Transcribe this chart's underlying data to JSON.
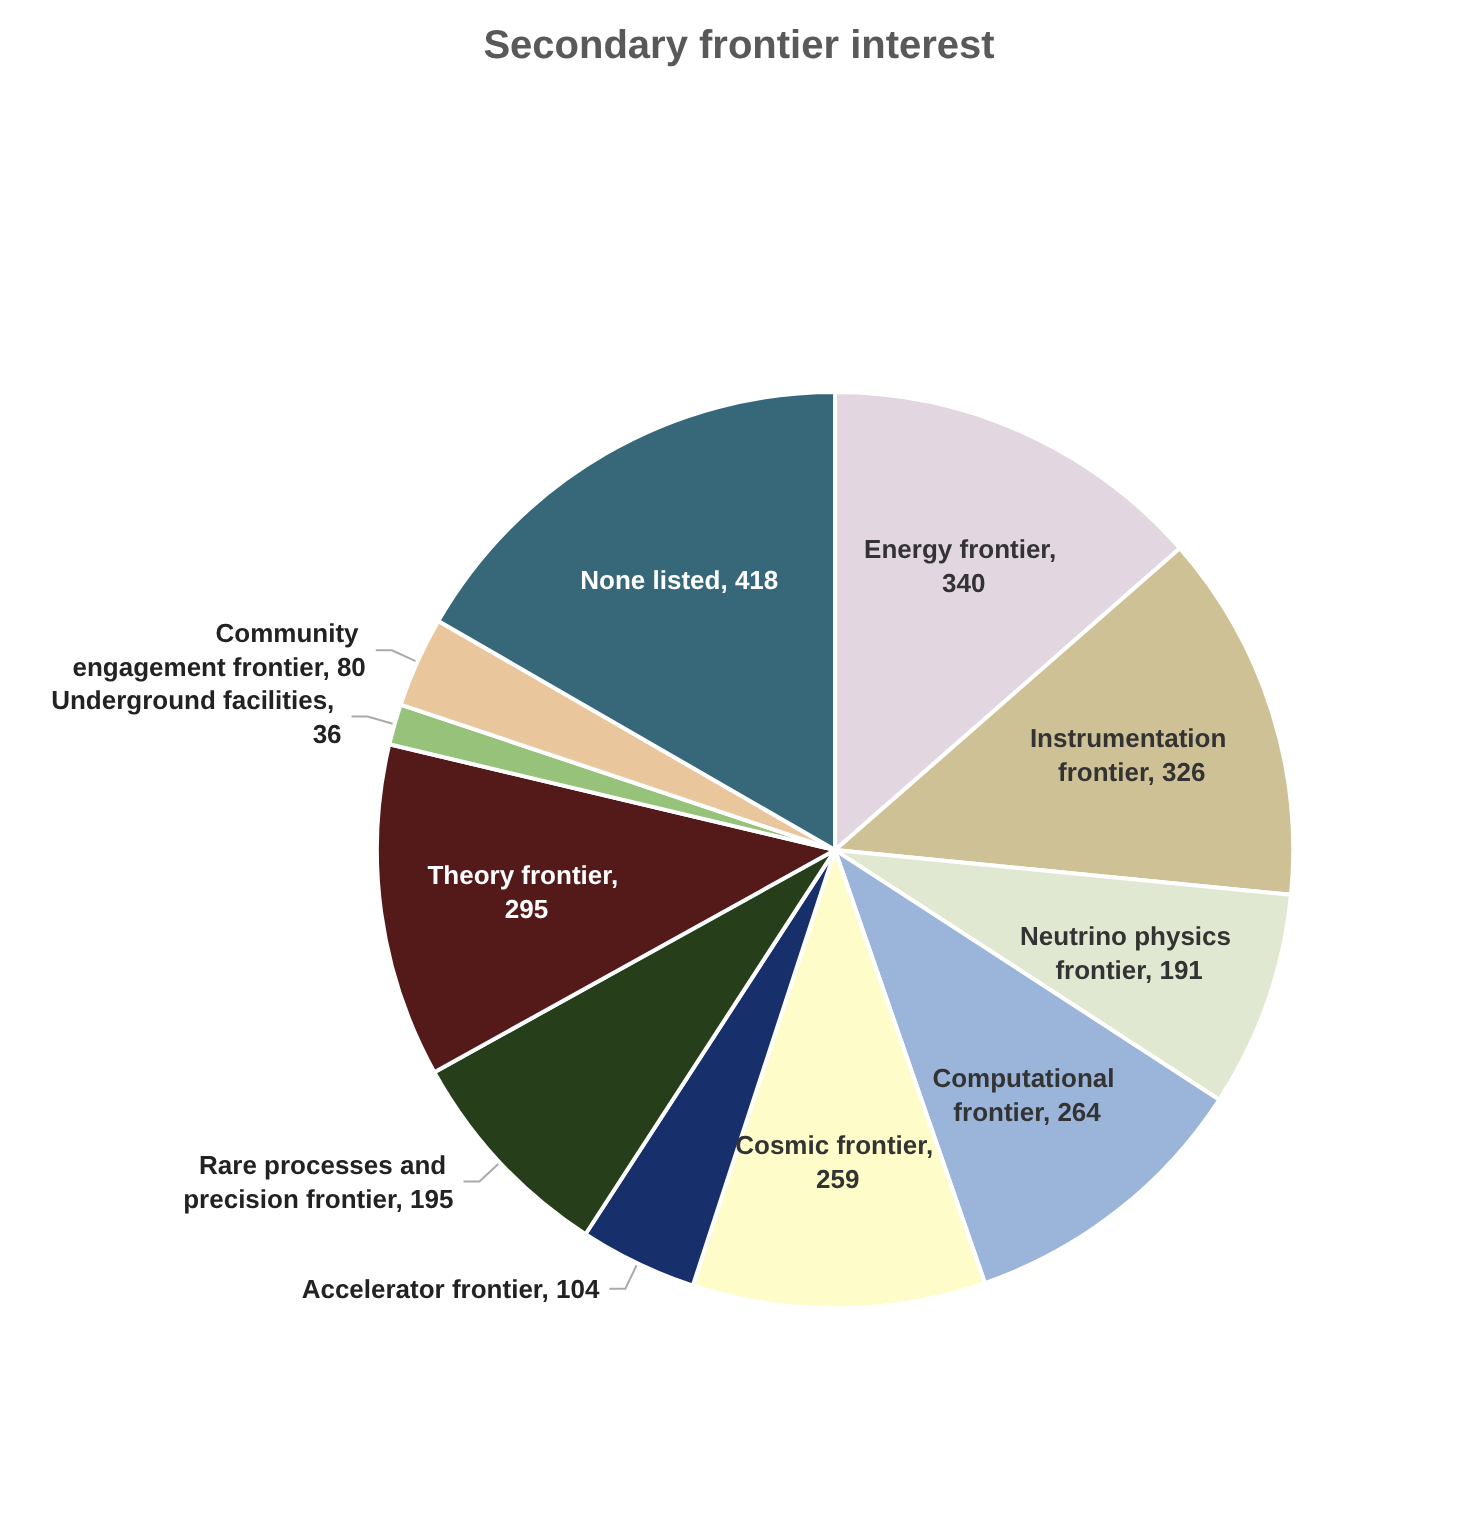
{
  "chart_data": {
    "type": "pie",
    "title": "Secondary frontier interest",
    "categories": [
      "Energy frontier, 340",
      "Instrumentation frontier, 326",
      "Neutrino physics frontier, 191",
      "Computational frontier, 264",
      "Cosmic frontier, 259",
      "Accelerator frontier, 104",
      "Rare processes and precision frontier, 195",
      "Theory frontier, 295",
      "Underground facilities, 36",
      "Community engagement frontier, 80",
      "None listed, 418"
    ],
    "values": [
      340,
      326,
      191,
      264,
      259,
      104,
      195,
      295,
      36,
      80,
      418
    ],
    "colors": [
      "#e2d6e0",
      "#cfc196",
      "#e1e8d2",
      "#9ab5d9",
      "#fefdc9",
      "#17306b",
      "#263f1a",
      "#541a1a",
      "#96c27a",
      "#e9c69c",
      "#36687a"
    ]
  }
}
